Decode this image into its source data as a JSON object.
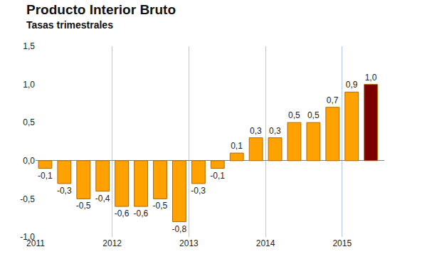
{
  "chart_data": {
    "type": "bar",
    "title": "Producto Interior Bruto",
    "subtitle": "Tasas trimestrales",
    "categories": [
      "2011",
      null,
      null,
      null,
      "2012",
      null,
      null,
      null,
      "2013",
      null,
      null,
      null,
      "2014",
      null,
      null,
      null,
      "2015",
      null
    ],
    "values": [
      -0.1,
      -0.3,
      -0.5,
      -0.4,
      -0.6,
      -0.6,
      -0.5,
      -0.8,
      -0.3,
      -0.1,
      0.1,
      0.3,
      0.3,
      0.5,
      0.5,
      0.7,
      0.9,
      1.0
    ],
    "value_labels": [
      "-0,1",
      "-0,3",
      "-0,5",
      "-0,4",
      "-0,6",
      "-0,6",
      "-0,5",
      "-0,8",
      "-0,3",
      "-0,1",
      "0,1",
      "0,3",
      "0,3",
      "0,5",
      "0,5",
      "0,7",
      "0,9",
      "1,0"
    ],
    "colors": [
      "#ffa200",
      "#ffa200",
      "#ffa200",
      "#ffa200",
      "#ffa200",
      "#ffa200",
      "#ffa200",
      "#ffa200",
      "#ffa200",
      "#ffa200",
      "#ffa200",
      "#ffa200",
      "#ffa200",
      "#ffa200",
      "#ffa200",
      "#ffa200",
      "#ffa200",
      "#7b0000"
    ],
    "ylim": [
      -1.0,
      1.5
    ],
    "yticks": [
      {
        "value": -1.0,
        "label": "-1,0"
      },
      {
        "value": -0.5,
        "label": "-0,5"
      },
      {
        "value": 0.0,
        "label": "0,0"
      },
      {
        "value": 0.5,
        "label": "0,5"
      },
      {
        "value": 1.0,
        "label": "1,0"
      },
      {
        "value": 1.5,
        "label": "1,5"
      }
    ],
    "grid": true,
    "data_labels": true
  }
}
